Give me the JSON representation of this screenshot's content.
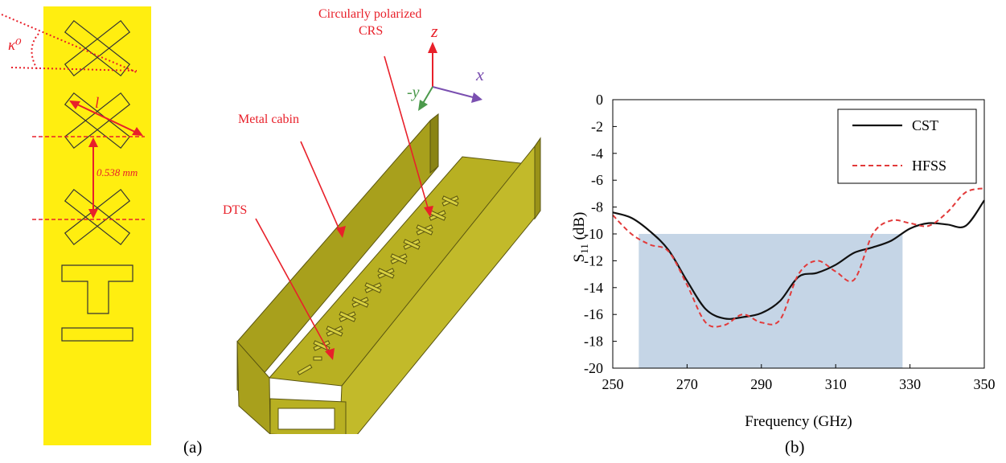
{
  "left_strip": {
    "angle_label": "κ⁰",
    "length_label": "l",
    "spacing_label": "0.538 mm"
  },
  "model_3d": {
    "labels": {
      "crs_line1": "Circularly polarized",
      "crs_line2": "CRS",
      "metal_cabin": "Metal cabin",
      "dts": "DTS"
    },
    "axes": {
      "z": "z",
      "x": "x",
      "y": "-y"
    }
  },
  "captions": {
    "a": "(a)",
    "b": "(b)"
  },
  "colors": {
    "strip_yellow": "#ffee10",
    "metal_olive": "#b8b022",
    "annotation_red": "#e8202a",
    "cst_line": "#111111",
    "hfss_line": "#e23a3a",
    "band_fill": "#c5d5e6"
  },
  "chart_data": {
    "type": "line",
    "title": "",
    "xlabel": "Frequency (GHz)",
    "ylabel": "S11 (dB)",
    "xlim": [
      250,
      350
    ],
    "ylim": [
      -20,
      0
    ],
    "xticks": [
      "250",
      "270",
      "290",
      "310",
      "330",
      "350"
    ],
    "yticks": [
      "0",
      "-2",
      "-4",
      "-6",
      "-8",
      "-10",
      "-12",
      "-14",
      "-16",
      "-18",
      "-20"
    ],
    "grid": false,
    "legend_position": "top-right",
    "band": {
      "x_from": 257,
      "x_to": 328,
      "y_from": -20,
      "y_to": -10
    },
    "series": [
      {
        "name": "CST",
        "style": "solid",
        "x": [
          250,
          255,
          260,
          265,
          270,
          275,
          280,
          285,
          290,
          295,
          300,
          305,
          310,
          315,
          320,
          325,
          330,
          335,
          340,
          345,
          350
        ],
        "y": [
          -8.4,
          -8.8,
          -9.8,
          -11.2,
          -13.5,
          -15.6,
          -16.3,
          -16.2,
          -15.9,
          -15.0,
          -13.2,
          -12.9,
          -12.3,
          -11.4,
          -11.0,
          -10.5,
          -9.6,
          -9.2,
          -9.3,
          -9.4,
          -7.5
        ]
      },
      {
        "name": "HFSS",
        "style": "dashed",
        "x": [
          250,
          255,
          260,
          265,
          270,
          275,
          280,
          285,
          290,
          295,
          300,
          305,
          310,
          315,
          320,
          325,
          330,
          335,
          340,
          345,
          350
        ],
        "y": [
          -8.6,
          -10.0,
          -10.8,
          -11.3,
          -13.8,
          -16.6,
          -16.8,
          -16.0,
          -16.6,
          -16.4,
          -13.0,
          -12.0,
          -12.8,
          -13.4,
          -10.0,
          -9.0,
          -9.2,
          -9.4,
          -8.4,
          -6.9,
          -6.6
        ]
      }
    ]
  }
}
